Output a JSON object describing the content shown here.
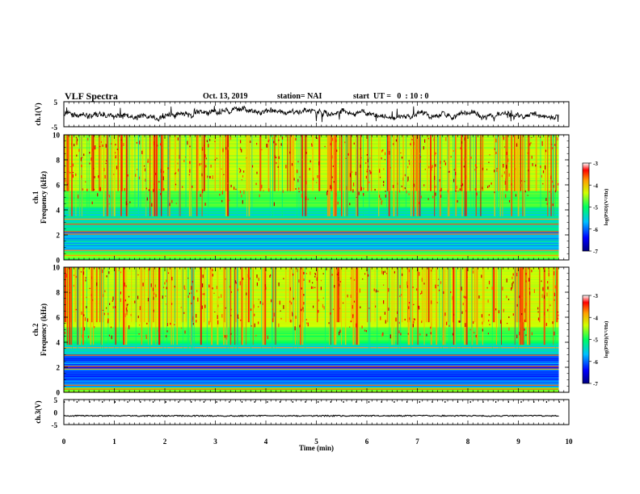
{
  "header": {
    "title": "VLF Spectra",
    "date": "Oct. 13, 2019",
    "station": "station= NAI",
    "start": "start  UT =   0  : 10 : 0"
  },
  "chart_data": [
    {
      "type": "line",
      "ylabel": "ch.1(V)",
      "ylim": [
        -5,
        5
      ],
      "yticks": [
        "5",
        "-5"
      ],
      "xlim": [
        0,
        10
      ],
      "description_values": {
        "baseline_v": 0.0,
        "x_end_min": 9.8
      }
    },
    {
      "type": "heatmap",
      "ylabel": "ch.1\nFrequency (kHz)",
      "ylabel_line1": "ch.1",
      "ylabel_line2": "Frequency (kHz)",
      "ylim": [
        0,
        10
      ],
      "yticks": [
        "0",
        "2",
        "4",
        "6",
        "8",
        "10"
      ],
      "xlim": [
        0,
        10
      ],
      "x_end_min": 9.8,
      "colorbar": {
        "label": "log(PSD)(V²/Hz)",
        "range": [
          -7,
          -3
        ],
        "ticks": [
          "-3",
          "-4",
          "-5",
          "-6",
          "-7"
        ]
      }
    },
    {
      "type": "heatmap",
      "ylabel": "ch.2\nFrequency (kHz)",
      "ylabel_line1": "ch.2",
      "ylabel_line2": "Frequency (kHz)",
      "ylim": [
        0,
        10
      ],
      "yticks": [
        "0",
        "2",
        "4",
        "6",
        "8",
        "10"
      ],
      "xlim": [
        0,
        10
      ],
      "x_end_min": 9.8,
      "colorbar": {
        "label": "log(PSD)(V²/Hz)",
        "range": [
          -7,
          -3
        ],
        "ticks": [
          "-3",
          "-4",
          "-5",
          "-6",
          "-7"
        ]
      }
    },
    {
      "type": "line",
      "ylabel": "ch.3(V)",
      "ylim": [
        -5,
        5
      ],
      "yticks": [
        "5",
        "0",
        "-5"
      ],
      "xlim": [
        0,
        10
      ],
      "xlabel": "Time (min)",
      "xticks": [
        "0",
        "1",
        "2",
        "3",
        "4",
        "5",
        "6",
        "7",
        "8",
        "9",
        "10"
      ],
      "description_values": {
        "baseline_v": -1.5
      }
    }
  ],
  "colors": {
    "scale": [
      "#00007f",
      "#0000ff",
      "#00bfff",
      "#00ff80",
      "#bfff00",
      "#ffbf00",
      "#ff0000",
      "#7f0000"
    ]
  }
}
